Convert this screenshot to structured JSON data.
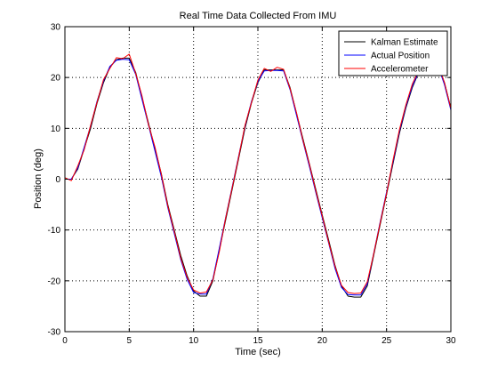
{
  "chart_data": {
    "type": "line",
    "title": "Real Time Data Collected From IMU",
    "xlabel": "Time (sec)",
    "ylabel": "Position (deg)",
    "xlim": [
      0,
      30
    ],
    "ylim": [
      -30,
      30
    ],
    "xticks": [
      "0",
      "5",
      "10",
      "15",
      "20",
      "25",
      "30"
    ],
    "yticks": [
      "-30",
      "-20",
      "-10",
      "0",
      "10",
      "20",
      "30"
    ],
    "grid": true,
    "legend": "top-right",
    "series": [
      {
        "name": "Kalman Estimate",
        "color": "#000000",
        "x": [
          0,
          0.5,
          1,
          1.5,
          2,
          2.5,
          3,
          3.5,
          4,
          4.5,
          5,
          5.5,
          6,
          6.5,
          7,
          7.5,
          8,
          8.5,
          9,
          9.5,
          10,
          10.5,
          11,
          11.5,
          12,
          12.5,
          13,
          13.5,
          14,
          14.5,
          15,
          15.5,
          16,
          16.5,
          17,
          17.5,
          18,
          18.5,
          19,
          19.5,
          20,
          20.5,
          21,
          21.5,
          22,
          22.5,
          23,
          23.5,
          24,
          24.5,
          25,
          25.5,
          26,
          26.5,
          27,
          27.5,
          28,
          28.5,
          29,
          29.5,
          30
        ],
        "y": [
          0,
          0,
          2,
          6,
          10,
          15,
          19,
          22,
          23.5,
          23.8,
          23.8,
          21,
          16,
          11,
          6,
          1,
          -5,
          -10,
          -15,
          -19,
          -22,
          -23,
          -23,
          -20,
          -14,
          -8,
          -2,
          4,
          10,
          15,
          19,
          21.5,
          21.5,
          21.5,
          21.5,
          18,
          13,
          8,
          3,
          -2,
          -7,
          -12,
          -17,
          -21,
          -23,
          -23.2,
          -23.2,
          -21,
          -15,
          -9,
          -3,
          3,
          9,
          14,
          18,
          21,
          22.5,
          22.5,
          22.5,
          19,
          14
        ]
      },
      {
        "name": "Actual Position",
        "color": "#0000ff",
        "x": [
          0,
          0.5,
          1,
          1.5,
          2,
          2.5,
          3,
          3.5,
          4,
          4.5,
          5,
          5.5,
          6,
          6.5,
          7,
          7.5,
          8,
          8.5,
          9,
          9.5,
          10,
          10.5,
          11,
          11.5,
          12,
          12.5,
          13,
          13.5,
          14,
          14.5,
          15,
          15.5,
          16,
          16.5,
          17,
          17.5,
          18,
          18.5,
          19,
          19.5,
          20,
          20.5,
          21,
          21.5,
          22,
          22.5,
          23,
          23.5,
          24,
          24.5,
          25,
          25.5,
          26,
          26.5,
          27,
          27.5,
          28,
          28.5,
          29,
          29.5,
          30
        ],
        "y": [
          0,
          0,
          2.2,
          6.3,
          10.5,
          15.4,
          19.3,
          22.2,
          23.4,
          23.6,
          23.5,
          20.6,
          15.6,
          10.6,
          5.5,
          0.4,
          -5.6,
          -10.7,
          -15.8,
          -19.7,
          -22.3,
          -22.6,
          -22.6,
          -19.6,
          -13.6,
          -7.5,
          -1.5,
          4.5,
          10.4,
          15.3,
          19.2,
          21.3,
          21.4,
          21.4,
          21.3,
          17.6,
          12.6,
          7.5,
          2.5,
          -2.6,
          -7.6,
          -12.6,
          -17.6,
          -21.3,
          -22.7,
          -22.8,
          -22.8,
          -20.6,
          -14.6,
          -8.5,
          -2.5,
          3.4,
          9.4,
          14.3,
          18.3,
          21.1,
          22.3,
          22.4,
          22.3,
          18.6,
          13.6
        ]
      },
      {
        "name": "Accelerometer",
        "color": "#ff0000",
        "x": [
          0,
          0.5,
          1,
          1.5,
          2,
          2.5,
          3,
          3.5,
          4,
          4.5,
          5,
          5.5,
          6,
          6.5,
          7,
          7.5,
          8,
          8.5,
          9,
          9.5,
          10,
          10.5,
          11,
          11.5,
          12,
          12.5,
          13,
          13.5,
          14,
          14.5,
          15,
          15.5,
          16,
          16.5,
          17,
          17.5,
          18,
          18.5,
          19,
          19.5,
          20,
          20.5,
          21,
          21.5,
          22,
          22.5,
          23,
          23.5,
          24,
          24.5,
          25,
          25.5,
          26,
          26.5,
          27,
          27.5,
          28,
          28.5,
          29,
          29.5,
          30
        ],
        "y": [
          0.3,
          -0.3,
          2.6,
          5.8,
          10.6,
          15.2,
          19.6,
          21.8,
          23.9,
          23.7,
          24.6,
          20.8,
          16.3,
          10.7,
          6.3,
          0.9,
          -5.3,
          -10.3,
          -15.5,
          -19.3,
          -21.8,
          -22.4,
          -22.2,
          -19.8,
          -14.3,
          -7.6,
          -1.7,
          4.3,
          10.6,
          15.1,
          19.5,
          21.8,
          21.2,
          22.0,
          21.6,
          17.8,
          13.1,
          7.7,
          2.9,
          -2.3,
          -7.2,
          -12.4,
          -17.2,
          -20.9,
          -22.3,
          -22.5,
          -22.4,
          -20.2,
          -14.7,
          -8.7,
          -2.8,
          3.7,
          9.7,
          14.6,
          18.7,
          21.4,
          22.8,
          22.4,
          22.6,
          19.0,
          13.9
        ]
      }
    ]
  }
}
